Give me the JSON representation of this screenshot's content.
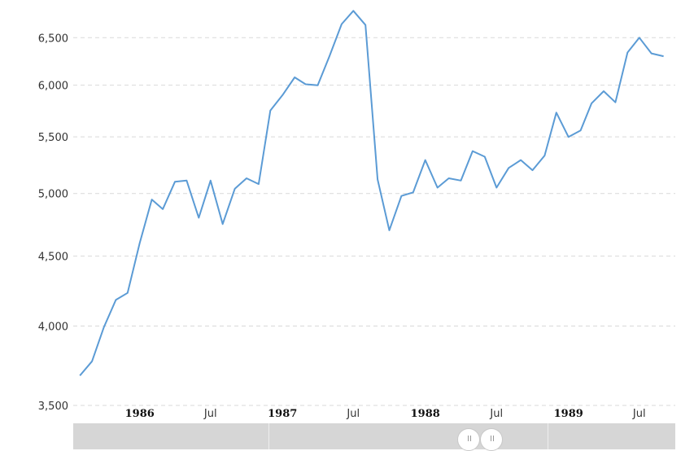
{
  "chart_data": {
    "type": "line",
    "title": "",
    "xlabel": "",
    "ylabel": "",
    "y_scale": "log",
    "ylim": [
      3500,
      6850
    ],
    "grid": true,
    "grid_style": "dashed-horizontal",
    "line_color": "#5b9bd5",
    "y_ticks": [
      3500,
      4000,
      4500,
      5000,
      5500,
      6000,
      6500
    ],
    "y_tick_labels": [
      "3,500",
      "4,000",
      "4,500",
      "5,000",
      "5,500",
      "6,000",
      "6,500"
    ],
    "x_ticks": [
      {
        "date": "1986-01",
        "label": "1986",
        "year": true
      },
      {
        "date": "1986-07",
        "label": "Jul",
        "year": false
      },
      {
        "date": "1987-01",
        "label": "1987",
        "year": true
      },
      {
        "date": "1987-07",
        "label": "Jul",
        "year": false
      },
      {
        "date": "1988-01",
        "label": "1988",
        "year": true
      },
      {
        "date": "1988-07",
        "label": "Jul",
        "year": false
      },
      {
        "date": "1989-01",
        "label": "1989",
        "year": true
      },
      {
        "date": "1989-07",
        "label": "Jul",
        "year": false
      }
    ],
    "x_range": [
      "1985-07-15",
      "1989-10-01"
    ],
    "series": [
      {
        "x": [
          "1985-08",
          "1985-09",
          "1985-10",
          "1985-11",
          "1985-12",
          "1986-01",
          "1986-02",
          "1986-03",
          "1986-04",
          "1986-05",
          "1986-06",
          "1986-07",
          "1986-08",
          "1986-09",
          "1986-10",
          "1986-11",
          "1986-12",
          "1987-01",
          "1987-02",
          "1987-03",
          "1987-04",
          "1987-05",
          "1987-06",
          "1987-07",
          "1987-08",
          "1987-09",
          "1987-10",
          "1987-11",
          "1987-12",
          "1988-01",
          "1988-02",
          "1988-03",
          "1988-04",
          "1988-05",
          "1988-06",
          "1988-07",
          "1988-08",
          "1988-09",
          "1988-10",
          "1988-11",
          "1988-12",
          "1989-01",
          "1989-02",
          "1989-03",
          "1989-04",
          "1989-05",
          "1989-06",
          "1989-07",
          "1989-08",
          "1989-09"
        ],
        "values": [
          3680,
          3770,
          3990,
          4180,
          4230,
          4600,
          4950,
          4870,
          5100,
          5110,
          4800,
          5110,
          4750,
          5040,
          5130,
          5080,
          5750,
          5900,
          6080,
          6010,
          6000,
          6300,
          6650,
          6800,
          6640,
          5120,
          4700,
          4980,
          5010,
          5290,
          5050,
          5130,
          5110,
          5370,
          5320,
          5050,
          5220,
          5290,
          5200,
          5330,
          5730,
          5500,
          5560,
          5820,
          5940,
          5830,
          6340,
          6500,
          6330,
          6300
        ]
      }
    ]
  }
}
